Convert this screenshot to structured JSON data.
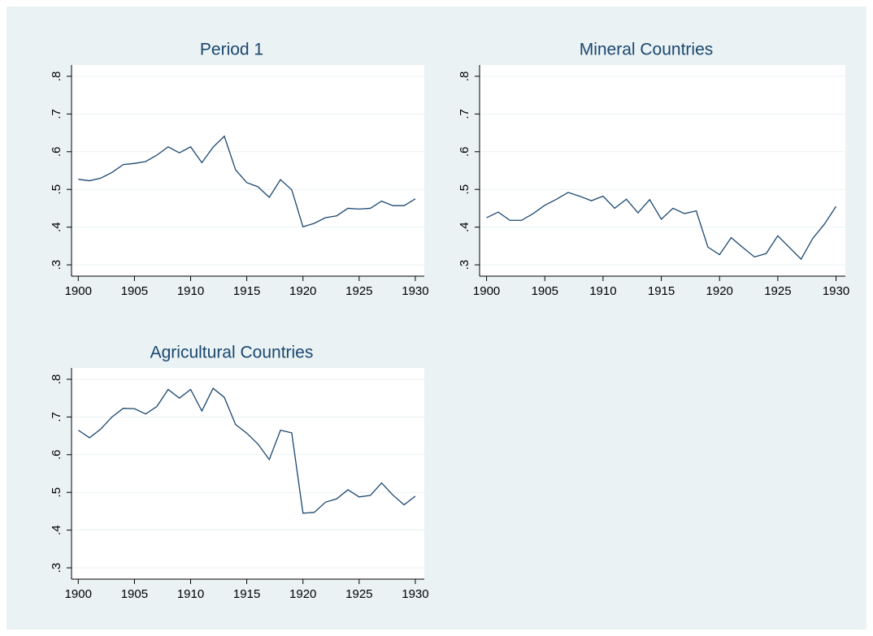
{
  "chart_data": [
    {
      "type": "line",
      "title": "Period 1",
      "x": [
        1900,
        1901,
        1902,
        1903,
        1904,
        1905,
        1906,
        1907,
        1908,
        1909,
        1910,
        1911,
        1912,
        1913,
        1914,
        1915,
        1916,
        1917,
        1918,
        1919,
        1920,
        1921,
        1922,
        1923,
        1924,
        1925,
        1926,
        1927,
        1928,
        1929,
        1930
      ],
      "series": [
        {
          "color": "#1a476f",
          "values": [
            0.527,
            0.523,
            0.53,
            0.545,
            0.566,
            0.569,
            0.574,
            0.591,
            0.613,
            0.597,
            0.613,
            0.571,
            0.612,
            0.641,
            0.552,
            0.518,
            0.507,
            0.479,
            0.526,
            0.499,
            0.401,
            0.41,
            0.425,
            0.43,
            0.45,
            0.448,
            0.45,
            0.469,
            0.457,
            0.457,
            0.475
          ]
        }
      ],
      "xlim": [
        1899.4,
        1930.8
      ],
      "xticks": [
        1900,
        1905,
        1910,
        1915,
        1920,
        1925,
        1930
      ],
      "ylim": [
        0.27,
        0.83
      ],
      "yticks": [
        {
          "value": 0.3,
          "label": ".3"
        },
        {
          "value": 0.4,
          "label": ".4"
        },
        {
          "value": 0.5,
          "label": ".5"
        },
        {
          "value": 0.6,
          "label": ".6"
        },
        {
          "value": 0.7,
          "label": ".7"
        },
        {
          "value": 0.8,
          "label": ".8"
        }
      ],
      "grid": true
    },
    {
      "type": "line",
      "title": "Mineral Countries",
      "x": [
        1900,
        1901,
        1902,
        1903,
        1904,
        1905,
        1906,
        1907,
        1908,
        1909,
        1910,
        1911,
        1912,
        1913,
        1914,
        1915,
        1916,
        1917,
        1918,
        1919,
        1920,
        1921,
        1922,
        1923,
        1924,
        1925,
        1926,
        1927,
        1928,
        1929,
        1930
      ],
      "series": [
        {
          "color": "#1a476f",
          "values": [
            0.425,
            0.44,
            0.418,
            0.418,
            0.436,
            0.458,
            0.474,
            0.492,
            0.482,
            0.47,
            0.482,
            0.45,
            0.474,
            0.438,
            0.473,
            0.421,
            0.45,
            0.436,
            0.443,
            0.347,
            0.327,
            0.372,
            0.346,
            0.321,
            0.33,
            0.377,
            0.346,
            0.315,
            0.37,
            0.408,
            0.455
          ]
        }
      ],
      "xlim": [
        1899.4,
        1930.8
      ],
      "xticks": [
        1900,
        1905,
        1910,
        1915,
        1920,
        1925,
        1930
      ],
      "ylim": [
        0.27,
        0.83
      ],
      "yticks": [
        {
          "value": 0.3,
          "label": ".3"
        },
        {
          "value": 0.4,
          "label": ".4"
        },
        {
          "value": 0.5,
          "label": ".5"
        },
        {
          "value": 0.6,
          "label": ".6"
        },
        {
          "value": 0.7,
          "label": ".7"
        },
        {
          "value": 0.8,
          "label": ".8"
        }
      ],
      "grid": true
    },
    {
      "type": "line",
      "title": "Agricultural Countries",
      "x": [
        1900,
        1901,
        1902,
        1903,
        1904,
        1905,
        1906,
        1907,
        1908,
        1909,
        1910,
        1911,
        1912,
        1913,
        1914,
        1915,
        1916,
        1917,
        1918,
        1919,
        1920,
        1921,
        1922,
        1923,
        1924,
        1925,
        1926,
        1927,
        1928,
        1929,
        1930
      ],
      "series": [
        {
          "color": "#1a476f",
          "values": [
            0.665,
            0.645,
            0.668,
            0.7,
            0.723,
            0.722,
            0.708,
            0.728,
            0.773,
            0.75,
            0.773,
            0.716,
            0.776,
            0.752,
            0.68,
            0.657,
            0.628,
            0.587,
            0.665,
            0.658,
            0.445,
            0.447,
            0.474,
            0.483,
            0.507,
            0.488,
            0.492,
            0.525,
            0.493,
            0.467,
            0.49
          ]
        }
      ],
      "xlim": [
        1899.4,
        1930.8
      ],
      "xticks": [
        1900,
        1905,
        1910,
        1915,
        1920,
        1925,
        1930
      ],
      "ylim": [
        0.27,
        0.83
      ],
      "yticks": [
        {
          "value": 0.3,
          "label": ".3"
        },
        {
          "value": 0.4,
          "label": ".4"
        },
        {
          "value": 0.5,
          "label": ".5"
        },
        {
          "value": 0.6,
          "label": ".6"
        },
        {
          "value": 0.7,
          "label": ".7"
        },
        {
          "value": 0.8,
          "label": ".8"
        }
      ],
      "grid": true
    }
  ]
}
